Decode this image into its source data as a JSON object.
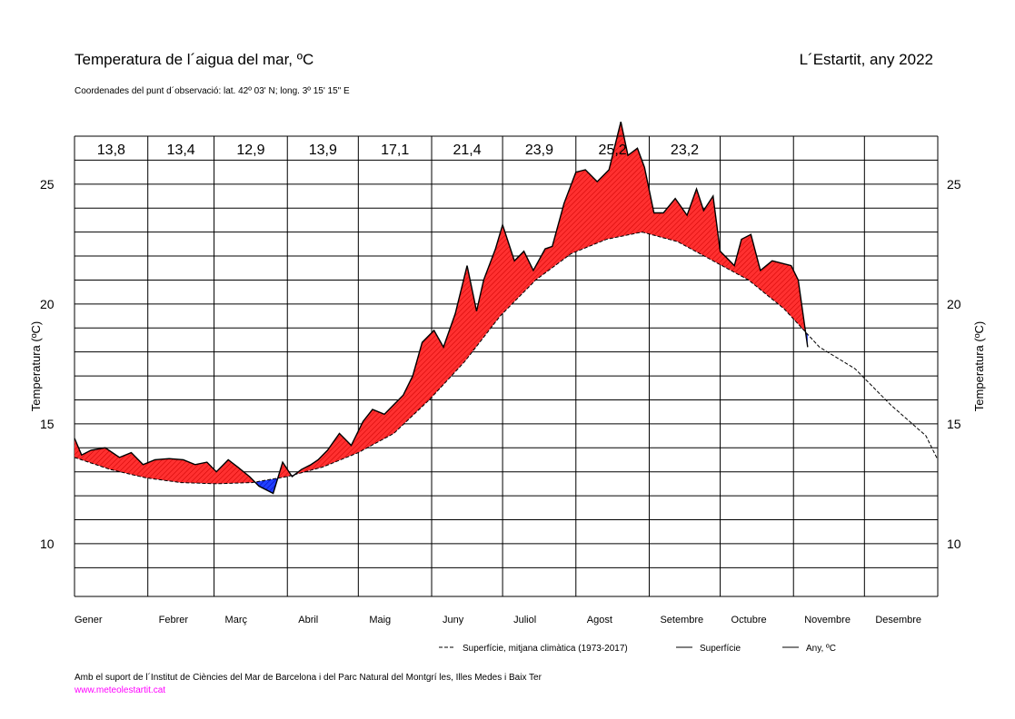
{
  "header": {
    "title": "Temperatura de l´aigua del mar, ºC",
    "location": "L´Estartit, any 2022",
    "coordinates": "Coordenades del punt d´observació: lat. 42º 03' N; long. 3º 15' 15\" E"
  },
  "footer": {
    "credit": "Amb el suport de l´Institut de Ciències del Mar de Barcelona i del Parc Natural del Montgrí les, Illes Medes i Baix Ter",
    "url": "www.meteolestartit.cat"
  },
  "colors": {
    "above_climate": "#ff0000",
    "below_climate": "#0000ff",
    "url": "#ff00ff"
  },
  "chart_data": {
    "type": "area",
    "ylabel": "Temperatura (ºC)",
    "ylim": [
      7.8,
      27.0
    ],
    "y_ticks": [
      10,
      15,
      20,
      25
    ],
    "grid": true,
    "months": [
      "Gener",
      "Febrer",
      "Març",
      "Abril",
      "Maig",
      "Juny",
      "Juliol",
      "Agost",
      "Setembre",
      "Octubre",
      "Novembre",
      "Desembre"
    ],
    "monthly_means": [
      "13,8",
      "13,4",
      "12,9",
      "13,9",
      "17,1",
      "21,4",
      "23,9",
      "25,2",
      "23,2"
    ],
    "legend": [
      "Superfície, mitjana climàtica (1973-2017)",
      "Superfície",
      "Any,   ºC"
    ],
    "series": [
      {
        "name": "Superfície, mitjana climàtica (1973-2017)",
        "style": "dashed",
        "x": [
          0,
          15,
          30,
          45,
          60,
          75,
          90,
          105,
          120,
          135,
          150,
          165,
          180,
          195,
          210,
          225,
          240,
          255,
          270,
          285,
          300,
          315,
          330,
          345,
          360,
          365
        ],
        "y": [
          13.6,
          13.1,
          12.75,
          12.55,
          12.5,
          12.55,
          12.8,
          13.2,
          13.8,
          14.6,
          16.0,
          17.6,
          19.5,
          21.0,
          22.1,
          22.7,
          23.0,
          22.6,
          21.8,
          21.0,
          19.8,
          18.2,
          17.3,
          15.8,
          14.5,
          13.5
        ]
      },
      {
        "name": "Superfície",
        "style": "solid",
        "x": [
          0,
          3,
          7,
          13,
          19,
          24,
          29,
          34,
          40,
          46,
          51,
          56,
          60,
          65,
          69,
          74,
          78,
          84,
          88,
          92,
          96,
          100,
          103,
          107,
          112,
          117,
          122,
          126,
          131,
          135,
          139,
          143,
          147,
          152,
          156,
          161,
          166,
          170,
          173,
          178,
          181,
          186,
          190,
          194,
          199,
          202,
          207,
          212,
          216,
          221,
          226,
          231,
          234,
          238,
          241,
          245,
          249,
          254,
          259,
          263,
          266,
          270,
          273,
          276,
          279,
          282,
          286,
          290,
          295,
          299,
          303,
          306,
          310
        ],
        "y": [
          14.4,
          13.7,
          13.9,
          14.0,
          13.6,
          13.8,
          13.3,
          13.5,
          13.55,
          13.5,
          13.3,
          13.4,
          13.0,
          13.5,
          13.2,
          12.8,
          12.4,
          12.1,
          13.4,
          12.8,
          13.1,
          13.3,
          13.5,
          13.9,
          14.6,
          14.1,
          15.1,
          15.6,
          15.4,
          15.8,
          16.2,
          17.0,
          18.4,
          18.9,
          18.2,
          19.6,
          21.6,
          19.7,
          21.0,
          22.3,
          23.3,
          21.8,
          22.2,
          21.4,
          22.3,
          22.4,
          24.2,
          25.5,
          25.6,
          25.1,
          25.6,
          27.6,
          26.2,
          26.5,
          25.7,
          23.8,
          23.8,
          24.4,
          23.7,
          24.8,
          23.9,
          24.5,
          22.2,
          21.9,
          21.6,
          22.7,
          22.9,
          21.4,
          21.8,
          21.7,
          21.6,
          21.0,
          18.2
        ]
      }
    ]
  }
}
